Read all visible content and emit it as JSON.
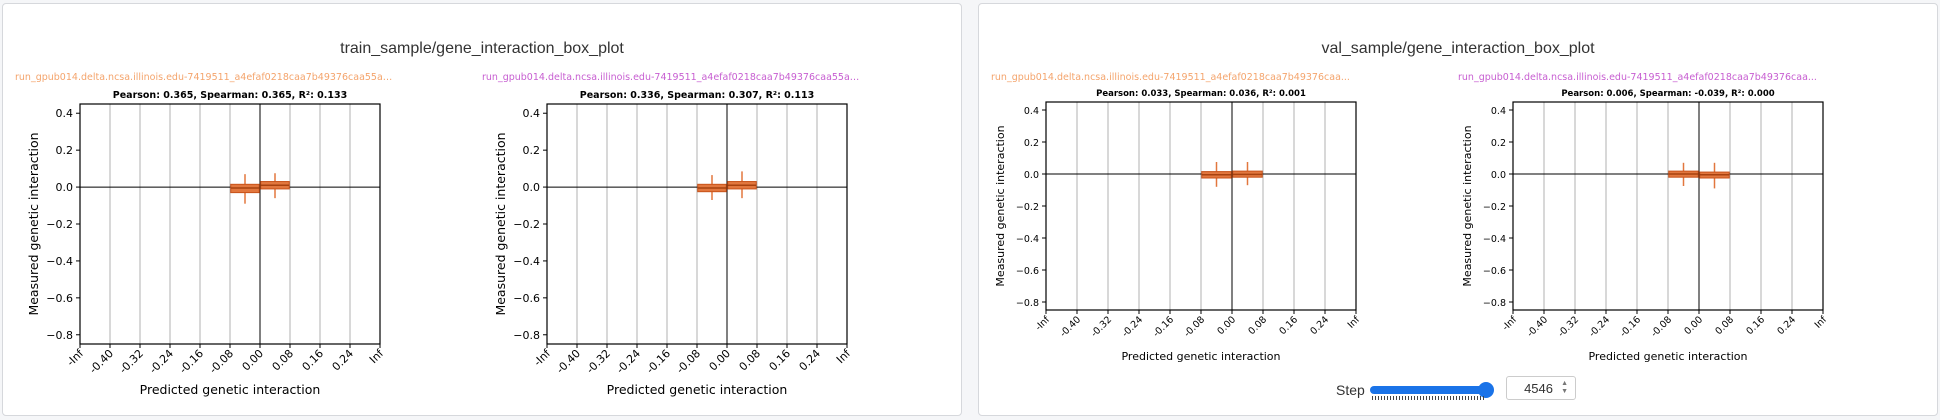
{
  "panels": [
    {
      "title": "train_sample/gene_interaction_box_plot"
    },
    {
      "title": "val_sample/gene_interaction_box_plot"
    }
  ],
  "step": {
    "label": "Step",
    "value": "4546",
    "fraction": 1.0
  },
  "colors": {
    "run_orange": "#f4a46c",
    "run_purple": "#c75ed1",
    "box_face": "#e2773e",
    "box_edge": "#c8531b",
    "slider": "#1a73e8"
  },
  "chart_data": [
    {
      "type": "box",
      "run_label": "run_gpub014.delta.ncsa.illinois.edu-7419511_a4efaf0218caa7b49376caa55a3b0f3559...",
      "run_color": "#f4a46c",
      "title": "Pearson: 0.365, Spearman: 0.365, R²: 0.133",
      "xlabel": "Predicted genetic interaction",
      "ylabel": "Measured genetic interaction",
      "categories": [
        "-Inf",
        "-0.40",
        "-0.32",
        "-0.24",
        "-0.16",
        "-0.08",
        "0.00",
        "0.08",
        "0.16",
        "0.24",
        "Inf"
      ],
      "yticks": [
        "0.4",
        "0.2",
        "0.0",
        "−0.2",
        "−0.4",
        "−0.6",
        "−0.8"
      ],
      "ylim": [
        -0.85,
        0.45
      ],
      "grid": true,
      "boxes": [
        {
          "position": 5.5,
          "whisker_low": -0.09,
          "q1": -0.03,
          "median": -0.005,
          "q3": 0.015,
          "whisker_high": 0.07
        },
        {
          "position": 6.5,
          "whisker_low": -0.06,
          "q1": -0.01,
          "median": 0.01,
          "q3": 0.03,
          "whisker_high": 0.075
        }
      ]
    },
    {
      "type": "box",
      "run_label": "run_gpub014.delta.ncsa.illinois.edu-7419511_a4efaf0218caa7b49376caa55a3b0f3559...",
      "run_color": "#c75ed1",
      "title": "Pearson: 0.336, Spearman: 0.307, R²: 0.113",
      "xlabel": "Predicted genetic interaction",
      "ylabel": "Measured genetic interaction",
      "categories": [
        "-Inf",
        "-0.40",
        "-0.32",
        "-0.24",
        "-0.16",
        "-0.08",
        "0.00",
        "0.08",
        "0.16",
        "0.24",
        "Inf"
      ],
      "yticks": [
        "0.4",
        "0.2",
        "0.0",
        "−0.2",
        "−0.4",
        "−0.6",
        "−0.8"
      ],
      "ylim": [
        -0.85,
        0.45
      ],
      "grid": true,
      "boxes": [
        {
          "position": 5.5,
          "whisker_low": -0.07,
          "q1": -0.025,
          "median": -0.005,
          "q3": 0.015,
          "whisker_high": 0.065
        },
        {
          "position": 6.5,
          "whisker_low": -0.06,
          "q1": -0.01,
          "median": 0.01,
          "q3": 0.03,
          "whisker_high": 0.085
        }
      ]
    },
    {
      "type": "box",
      "run_label": "run_gpub014.delta.ncsa.illinois.edu-7419511_a4efaf0218caa7b49376caa...",
      "run_color": "#f4a46c",
      "title": "Pearson: 0.033, Spearman: 0.036, R²: 0.001",
      "xlabel": "Predicted genetic interaction",
      "ylabel": "Measured genetic interaction",
      "categories": [
        "-Inf",
        "-0.40",
        "-0.32",
        "-0.24",
        "-0.16",
        "-0.08",
        "0.00",
        "0.08",
        "0.16",
        "0.24",
        "Inf"
      ],
      "yticks": [
        "0.4",
        "0.2",
        "0.0",
        "−0.2",
        "−0.4",
        "−0.6",
        "−0.8"
      ],
      "ylim": [
        -0.85,
        0.45
      ],
      "grid": true,
      "boxes": [
        {
          "position": 5.5,
          "whisker_low": -0.08,
          "q1": -0.025,
          "median": -0.005,
          "q3": 0.015,
          "whisker_high": 0.075
        },
        {
          "position": 6.5,
          "whisker_low": -0.07,
          "q1": -0.02,
          "median": -0.002,
          "q3": 0.018,
          "whisker_high": 0.075
        }
      ]
    },
    {
      "type": "box",
      "run_label": "run_gpub014.delta.ncsa.illinois.edu-7419511_a4efaf0218caa7b49376caa...",
      "run_color": "#c75ed1",
      "title": "Pearson: 0.006, Spearman: -0.039, R²: 0.000",
      "xlabel": "Predicted genetic interaction",
      "ylabel": "Measured genetic interaction",
      "categories": [
        "-Inf",
        "-0.40",
        "-0.32",
        "-0.24",
        "-0.16",
        "-0.08",
        "0.00",
        "0.08",
        "0.16",
        "0.24",
        "Inf"
      ],
      "yticks": [
        "0.4",
        "0.2",
        "0.0",
        "−0.2",
        "−0.4",
        "−0.6",
        "−0.8"
      ],
      "ylim": [
        -0.85,
        0.45
      ],
      "grid": true,
      "boxes": [
        {
          "position": 5.5,
          "whisker_low": -0.075,
          "q1": -0.02,
          "median": 0.0,
          "q3": 0.018,
          "whisker_high": 0.07
        },
        {
          "position": 6.5,
          "whisker_low": -0.09,
          "q1": -0.025,
          "median": -0.005,
          "q3": 0.012,
          "whisker_high": 0.07
        }
      ]
    }
  ]
}
